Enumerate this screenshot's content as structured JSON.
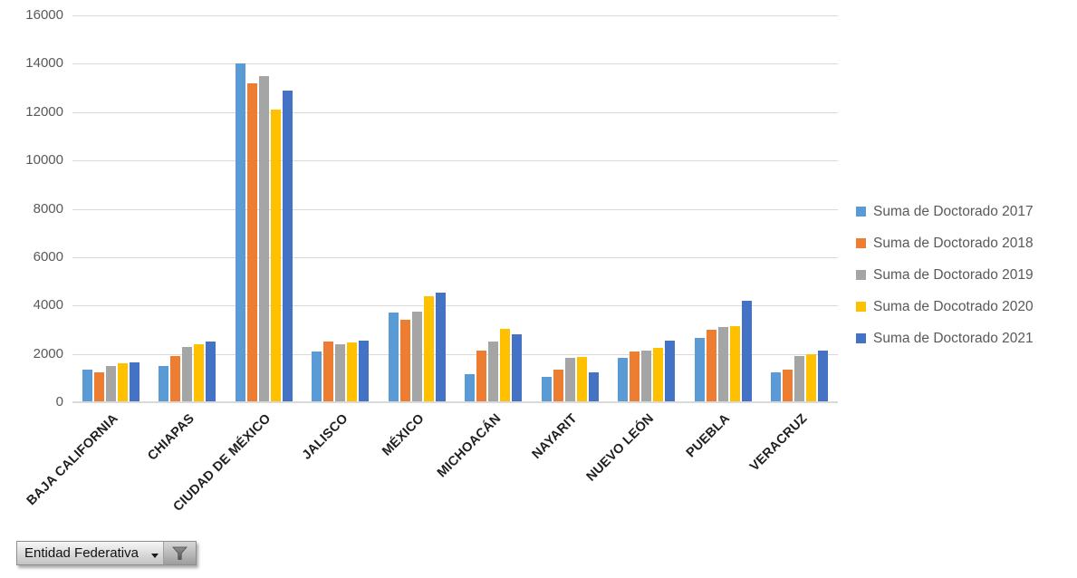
{
  "chart_data": {
    "type": "bar",
    "title": "",
    "categories": [
      "BAJA CALIFORNIA",
      "CHIAPAS",
      "CIUDAD DE MÉXICO",
      "JALISCO",
      "MÉXICO",
      "MICHOACÁN",
      "NAYARIT",
      "NUEVO LEÓN",
      "PUEBLA",
      "VERACRUZ"
    ],
    "series": [
      {
        "name": "Suma de Doctorado 2017",
        "color": "#5B9BD5",
        "values": [
          1350,
          1500,
          14000,
          2100,
          3700,
          1150,
          1050,
          1850,
          2650,
          1250
        ]
      },
      {
        "name": "Suma de Doctorado 2018",
        "color": "#ED7D31",
        "values": [
          1250,
          1900,
          13200,
          2500,
          3400,
          2150,
          1350,
          2100,
          3000,
          1350
        ]
      },
      {
        "name": "Suma de Doctorado 2019",
        "color": "#A5A5A5",
        "values": [
          1500,
          2300,
          13500,
          2400,
          3750,
          2500,
          1850,
          2150,
          3100,
          1900
        ]
      },
      {
        "name": "Suma de Docotrado  2020",
        "color": "#FFC000",
        "values": [
          1600,
          2400,
          12100,
          2480,
          4400,
          3050,
          1880,
          2250,
          3150,
          2000
        ]
      },
      {
        "name": "Suma de Doctorado 2021",
        "color": "#4472C4",
        "values": [
          1650,
          2500,
          12900,
          2530,
          4550,
          2800,
          1250,
          2550,
          4200,
          2150
        ]
      }
    ],
    "xlabel": "",
    "ylabel": "",
    "ylim": [
      0,
      16000
    ],
    "ytick_step": 2000,
    "yticks": [
      "16000",
      "14000",
      "12000",
      "10000",
      "8000",
      "6000",
      "4000",
      "2000",
      "0"
    ],
    "grid": true,
    "legend_position": "right"
  },
  "filter_button": {
    "label": "Entidad Federativa"
  },
  "colors": {
    "gridline": "#D9D9D9",
    "axis_text": "#595959",
    "category_text": "#1F1F1F",
    "background": "#FFFFFF"
  }
}
